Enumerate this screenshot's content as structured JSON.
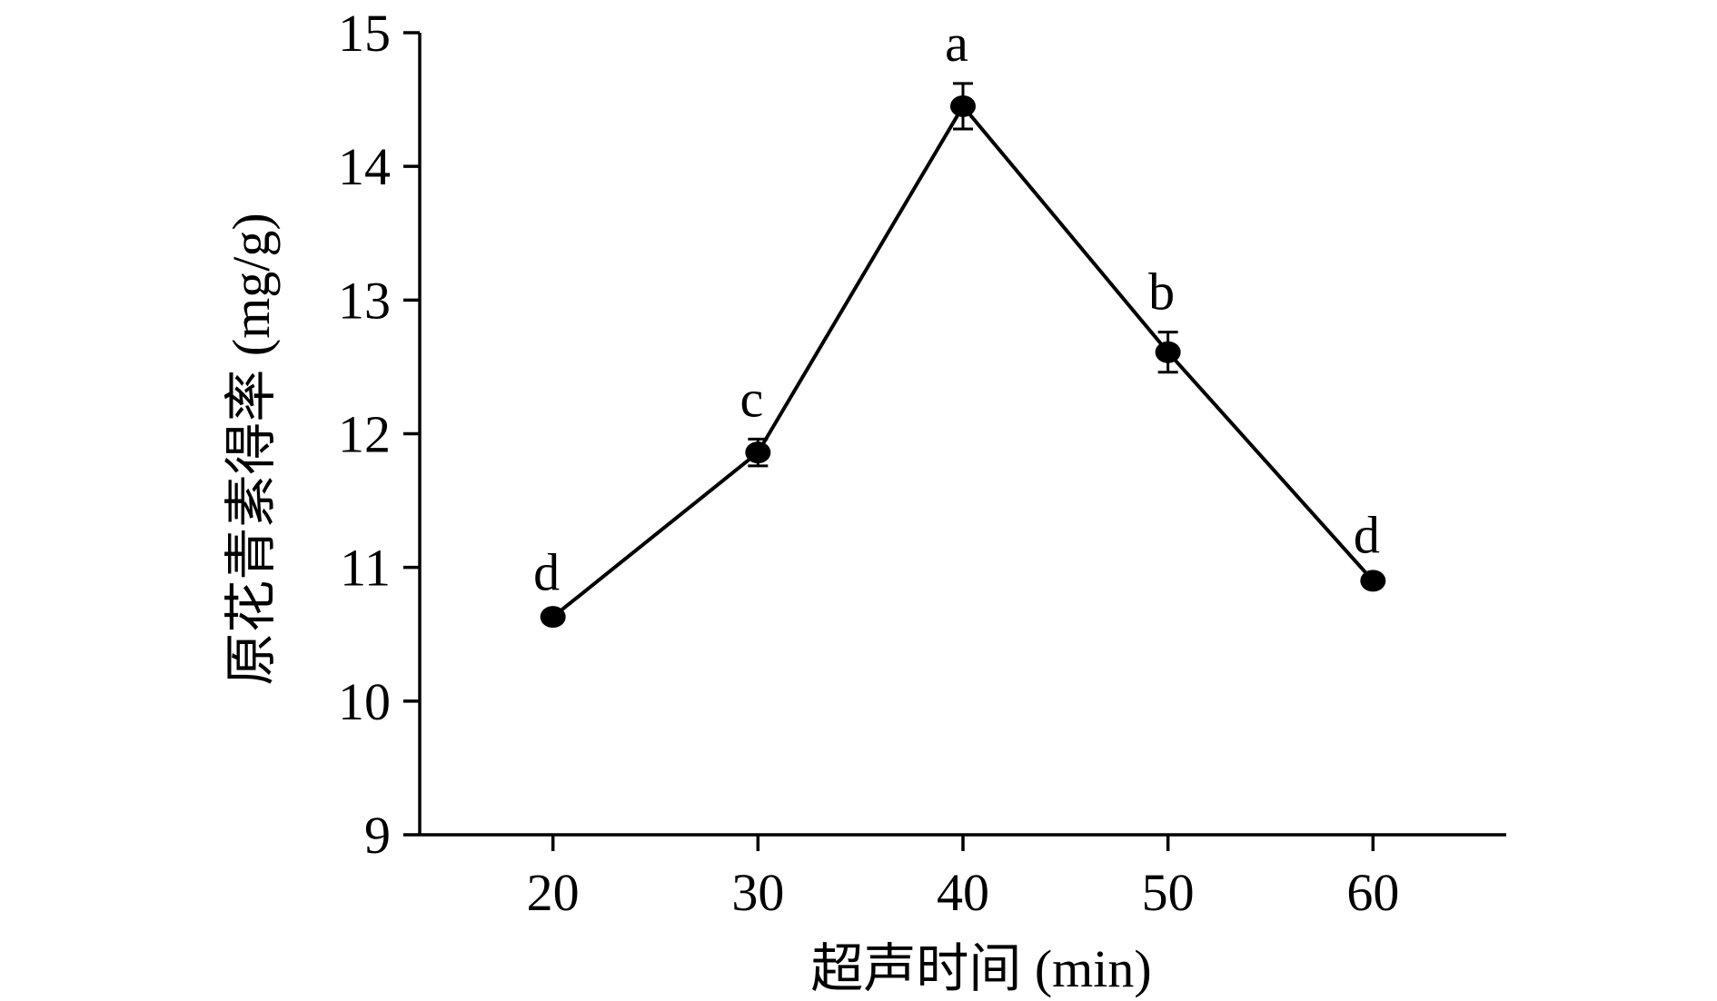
{
  "chart_data": {
    "type": "line",
    "title": "",
    "xlabel": "超声时间 (min)",
    "ylabel": "原花青素得率 (mg/g)",
    "xlim": [
      13.5,
      66.5
    ],
    "ylim": [
      9,
      15
    ],
    "x_ticks": [
      20,
      30,
      40,
      50,
      60
    ],
    "y_ticks": [
      9,
      10,
      11,
      12,
      13,
      14,
      15
    ],
    "grid": false,
    "legend": "none",
    "series": [
      {
        "x": [
          20,
          30,
          40,
          50,
          60
        ],
        "y": [
          10.63,
          11.86,
          14.45,
          12.61,
          10.9
        ],
        "error": [
          0.03,
          0.1,
          0.17,
          0.15,
          0.04
        ],
        "labels": [
          "d",
          "c",
          "a",
          "b",
          "d"
        ],
        "color": "#000000",
        "marker": "circle"
      }
    ]
  }
}
